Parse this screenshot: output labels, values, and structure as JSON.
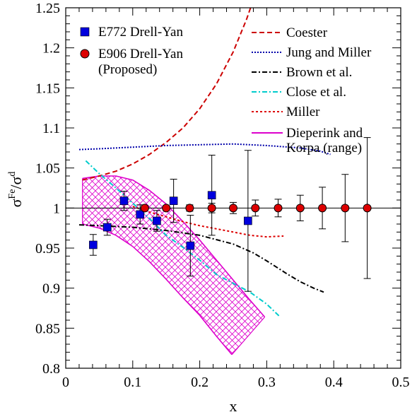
{
  "chart_data": {
    "type": "scatter",
    "xlabel": "x",
    "ylabel": {
      "main": "σ",
      "sup1": "Fe",
      "slash": "/σ",
      "sup2": "d"
    },
    "xlim": [
      0,
      0.5
    ],
    "ylim": [
      0.8,
      1.25
    ],
    "x_ticks": [
      0,
      0.1,
      0.2,
      0.3,
      0.4,
      0.5
    ],
    "x_tick_labels": [
      "0",
      "0.1",
      "0.2",
      "0.3",
      "0.4",
      "0.5"
    ],
    "y_ticks": [
      0.8,
      0.85,
      0.9,
      0.95,
      1.0,
      1.05,
      1.1,
      1.15,
      1.2,
      1.25
    ],
    "y_tick_labels": [
      "0.8",
      "0.85",
      "0.9",
      "0.95",
      "1",
      "1.05",
      "1.1",
      "1.15",
      "1.2",
      "1.25"
    ],
    "reference_line": 1.0,
    "grid": false,
    "series": [
      {
        "name": "E772 Drell-Yan",
        "kind": "points",
        "marker": "square",
        "color": "#0000dd",
        "points": [
          {
            "x": 0.041,
            "y": 0.954,
            "err": 0.013
          },
          {
            "x": 0.062,
            "y": 0.976,
            "err": 0.01
          },
          {
            "x": 0.087,
            "y": 1.009,
            "err": 0.012
          },
          {
            "x": 0.111,
            "y": 0.992,
            "err": 0.012
          },
          {
            "x": 0.136,
            "y": 0.984,
            "err": 0.013
          },
          {
            "x": 0.161,
            "y": 1.009,
            "err": 0.027
          },
          {
            "x": 0.186,
            "y": 0.953,
            "err": 0.038
          },
          {
            "x": 0.218,
            "y": 1.016,
            "err": 0.05
          },
          {
            "x": 0.272,
            "y": 0.984,
            "err": 0.088
          }
        ]
      },
      {
        "name": "E906 Drell-Yan (Proposed)",
        "kind": "points",
        "marker": "circle",
        "color": "#dd0000",
        "points": [
          {
            "x": 0.118,
            "y": 1.0,
            "err": 0.003
          },
          {
            "x": 0.15,
            "y": 1.0,
            "err": 0.003
          },
          {
            "x": 0.185,
            "y": 1.0,
            "err": 0.004
          },
          {
            "x": 0.218,
            "y": 1.0,
            "err": 0.006
          },
          {
            "x": 0.25,
            "y": 1.0,
            "err": 0.007
          },
          {
            "x": 0.283,
            "y": 1.0,
            "err": 0.01
          },
          {
            "x": 0.317,
            "y": 1.0,
            "err": 0.011
          },
          {
            "x": 0.35,
            "y": 1.0,
            "err": 0.016
          },
          {
            "x": 0.383,
            "y": 1.0,
            "err": 0.026
          },
          {
            "x": 0.417,
            "y": 1.0,
            "err": 0.042
          },
          {
            "x": 0.45,
            "y": 1.0,
            "err": 0.088
          }
        ]
      },
      {
        "name": "Coester",
        "kind": "line",
        "color": "#cc0000",
        "dash": "dashed",
        "points": [
          [
            0.025,
            1.035
          ],
          [
            0.05,
            1.04
          ],
          [
            0.075,
            1.046
          ],
          [
            0.1,
            1.055
          ],
          [
            0.125,
            1.067
          ],
          [
            0.15,
            1.082
          ],
          [
            0.175,
            1.1
          ],
          [
            0.2,
            1.124
          ],
          [
            0.225,
            1.155
          ],
          [
            0.25,
            1.195
          ],
          [
            0.27,
            1.236
          ],
          [
            0.28,
            1.26
          ]
        ]
      },
      {
        "name": "Jung and Miller",
        "kind": "line",
        "color": "#0000aa",
        "dash": "dotted",
        "points": [
          [
            0.02,
            1.073
          ],
          [
            0.05,
            1.074
          ],
          [
            0.1,
            1.076
          ],
          [
            0.15,
            1.078
          ],
          [
            0.2,
            1.079
          ],
          [
            0.25,
            1.08
          ],
          [
            0.3,
            1.078
          ],
          [
            0.35,
            1.075
          ],
          [
            0.38,
            1.071
          ],
          [
            0.395,
            1.067
          ]
        ]
      },
      {
        "name": "Brown et al.",
        "kind": "line",
        "color": "#000000",
        "dash": "dashdot",
        "points": [
          [
            0.02,
            0.979
          ],
          [
            0.05,
            0.978
          ],
          [
            0.1,
            0.976
          ],
          [
            0.15,
            0.972
          ],
          [
            0.2,
            0.966
          ],
          [
            0.25,
            0.955
          ],
          [
            0.28,
            0.944
          ],
          [
            0.3,
            0.934
          ],
          [
            0.33,
            0.918
          ],
          [
            0.35,
            0.908
          ],
          [
            0.37,
            0.9
          ],
          [
            0.385,
            0.895
          ]
        ]
      },
      {
        "name": "Close et al.",
        "kind": "line",
        "color": "#00cccc",
        "dash": "dashdot",
        "points": [
          [
            0.03,
            1.059
          ],
          [
            0.05,
            1.043
          ],
          [
            0.075,
            1.025
          ],
          [
            0.1,
            1.006
          ],
          [
            0.125,
            0.987
          ],
          [
            0.15,
            0.966
          ],
          [
            0.175,
            0.951
          ],
          [
            0.2,
            0.935
          ],
          [
            0.225,
            0.917
          ],
          [
            0.25,
            0.906
          ],
          [
            0.275,
            0.895
          ],
          [
            0.3,
            0.88
          ],
          [
            0.32,
            0.864
          ]
        ]
      },
      {
        "name": "Miller",
        "kind": "line",
        "color": "#dd0000",
        "dash": "dotted-dense",
        "points": [
          [
            0.1,
            1.002
          ],
          [
            0.125,
            0.995
          ],
          [
            0.15,
            0.989
          ],
          [
            0.175,
            0.983
          ],
          [
            0.2,
            0.978
          ],
          [
            0.225,
            0.974
          ],
          [
            0.25,
            0.97
          ],
          [
            0.275,
            0.966
          ],
          [
            0.3,
            0.964
          ],
          [
            0.325,
            0.965
          ]
        ]
      },
      {
        "name": "Dieperink and Korpa (range)",
        "kind": "band",
        "color": "#dd00cc",
        "upper": [
          [
            0.025,
            1.037
          ],
          [
            0.05,
            1.04
          ],
          [
            0.075,
            1.04
          ],
          [
            0.1,
            1.035
          ],
          [
            0.125,
            1.022
          ],
          [
            0.15,
            1.005
          ],
          [
            0.175,
            0.983
          ],
          [
            0.2,
            0.96
          ],
          [
            0.225,
            0.935
          ],
          [
            0.25,
            0.91
          ],
          [
            0.275,
            0.885
          ],
          [
            0.297,
            0.864
          ]
        ],
        "lower": [
          [
            0.025,
            0.98
          ],
          [
            0.05,
            0.975
          ],
          [
            0.075,
            0.966
          ],
          [
            0.1,
            0.952
          ],
          [
            0.125,
            0.933
          ],
          [
            0.15,
            0.911
          ],
          [
            0.175,
            0.888
          ],
          [
            0.2,
            0.866
          ],
          [
            0.225,
            0.84
          ],
          [
            0.248,
            0.817
          ]
        ]
      }
    ],
    "legend_left": [
      {
        "series": 0,
        "line1": "E772 Drell-Yan"
      },
      {
        "series": 1,
        "line1": "E906 Drell-Yan",
        "line2": "(Proposed)"
      }
    ],
    "legend_right": [
      {
        "series": 2,
        "line1": "Coester"
      },
      {
        "series": 3,
        "line1": "Jung and Miller"
      },
      {
        "series": 4,
        "line1": "Brown et al."
      },
      {
        "series": 5,
        "line1": "Close et al."
      },
      {
        "series": 6,
        "line1": "Miller"
      },
      {
        "series": 7,
        "line1": "Dieperink and",
        "line2": "Korpa (range)"
      }
    ],
    "legend_placement": "top"
  }
}
